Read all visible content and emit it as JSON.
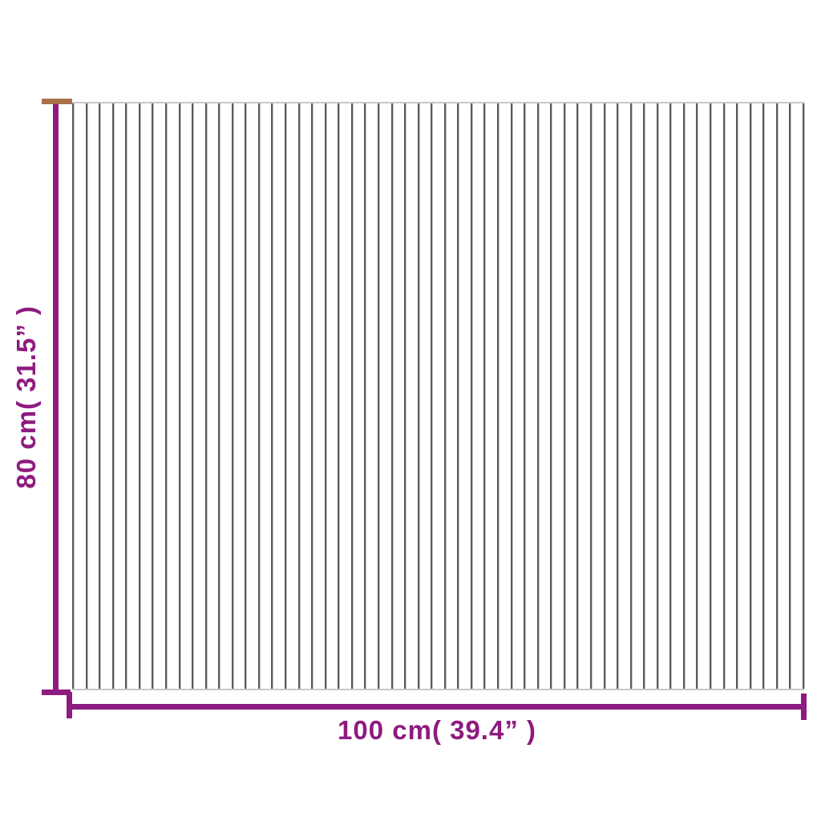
{
  "diagram": {
    "type": "product-dimension-diagram",
    "subject": "vertically striped mat shown in top view with measurement lines"
  },
  "labels": {
    "height": "80 cm( 31.5” )",
    "width": "100 cm( 39.4” )"
  },
  "colors": {
    "dimension": "#8e1b80",
    "accent": "#a9714b",
    "stripe": "#5a5a5a",
    "edge": "#c9c9c9",
    "background": "#ffffff"
  },
  "mat": {
    "stripe_count": 56
  }
}
